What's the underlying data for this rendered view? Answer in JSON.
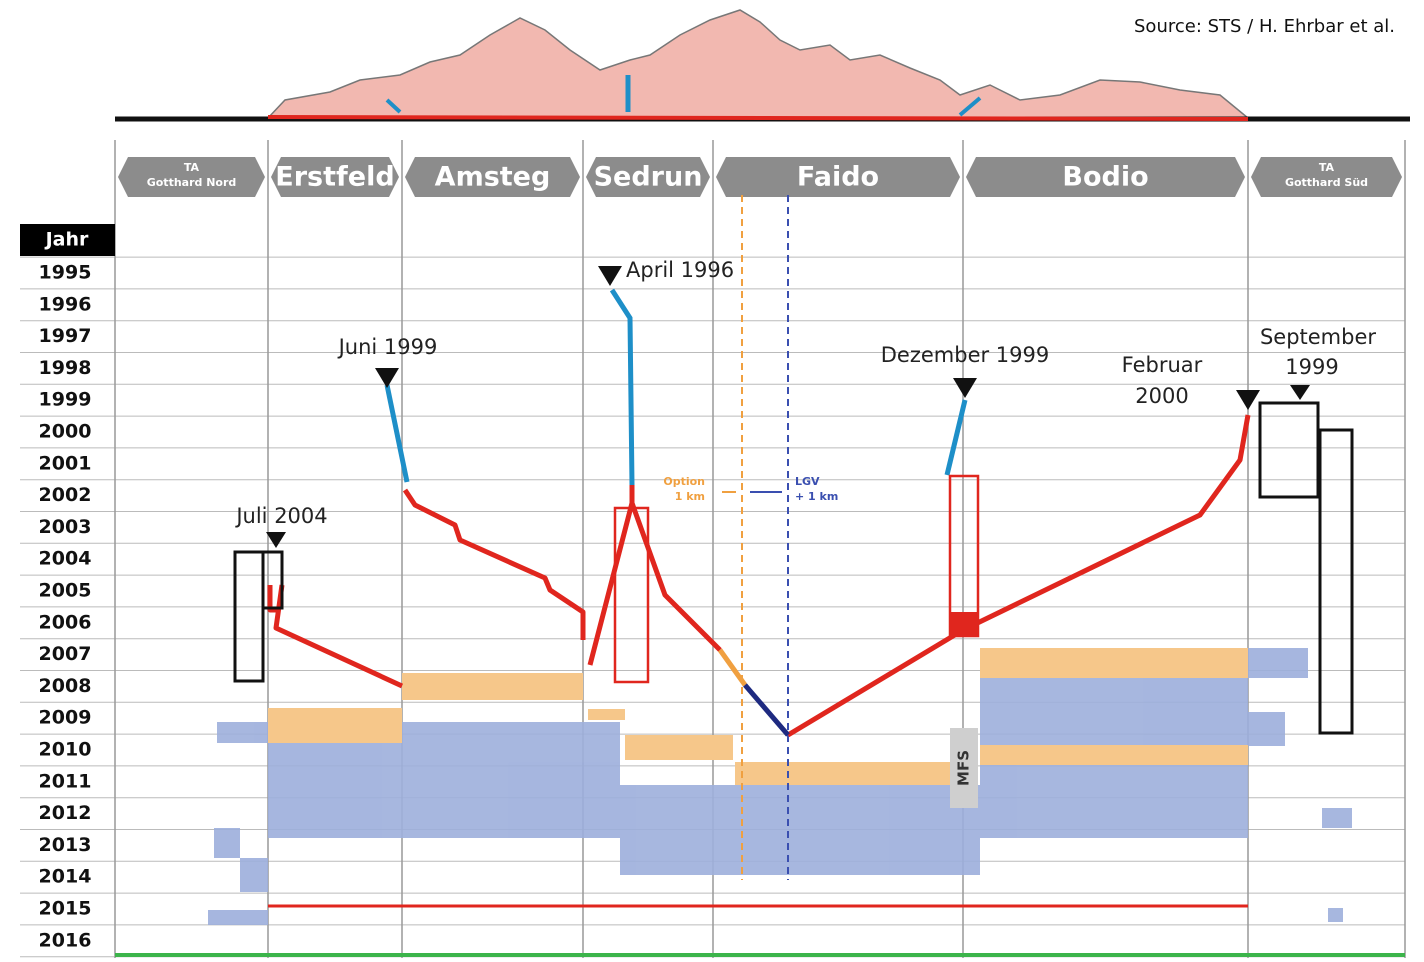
{
  "source": "Source: STS / H. Ehrbar et al.",
  "sections": [
    {
      "line1": "TA",
      "line2": "Gotthard Nord"
    },
    {
      "label": "Erstfeld"
    },
    {
      "label": "Amsteg"
    },
    {
      "label": "Sedrun"
    },
    {
      "label": "Faido"
    },
    {
      "label": "Bodio"
    },
    {
      "line1": "TA",
      "line2": "Gotthard Süd"
    }
  ],
  "year_header": "Jahr",
  "years": [
    "1995",
    "1996",
    "1997",
    "1998",
    "1999",
    "2000",
    "2001",
    "2002",
    "2003",
    "2004",
    "2005",
    "2006",
    "2007",
    "2008",
    "2009",
    "2010",
    "2011",
    "2012",
    "2013",
    "2014",
    "2015",
    "2016"
  ],
  "annotations": {
    "erstfeld_start": "Juli 2004",
    "amsteg_start": "Juni 1999",
    "sedrun_start": "April 1996",
    "faido_start": "Dezember 1999",
    "bodio_start_line1": "Februar",
    "bodio_start_line2": "2000",
    "sued_start_line1": "September",
    "sued_start_line2": "1999",
    "option_line1": "Option",
    "option_line2": "1 km",
    "lgv_line1": "LGV",
    "lgv_line2": "+ 1 km",
    "mfs": "MFS"
  }
}
